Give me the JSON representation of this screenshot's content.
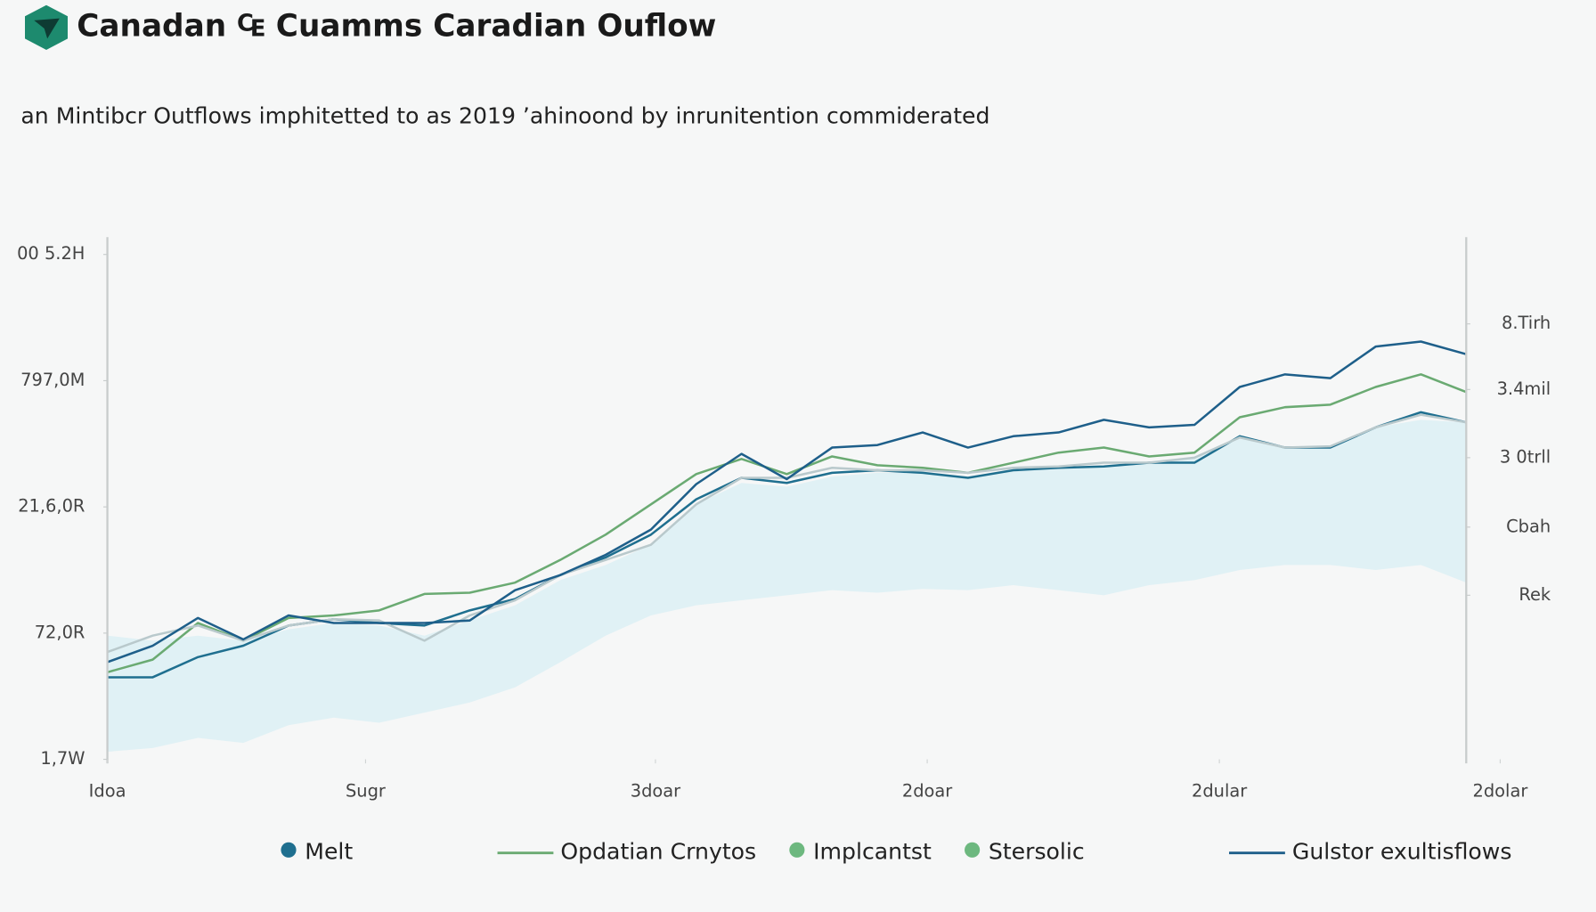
{
  "chart_data": {
    "type": "line",
    "title": "Canadan ₠ Cuamms Caradian Ouflow",
    "subtitle": "an Mintibcr Outflows imphitetted to as 2019 ’ahinoond by inrunitention commiderated",
    "x": [
      0,
      2,
      4,
      6,
      8,
      10,
      12,
      14,
      16,
      18,
      20,
      22,
      24,
      26,
      28,
      30,
      32,
      34,
      36,
      38,
      40,
      42,
      44,
      46,
      48,
      50,
      52,
      54,
      56,
      58,
      60
    ],
    "xlim": [
      0,
      60
    ],
    "xticks": [
      {
        "value": 0,
        "label": "Idoa"
      },
      {
        "value": 11.4,
        "label": "Sugr"
      },
      {
        "value": 24.2,
        "label": "3doar"
      },
      {
        "value": 36.2,
        "label": "2doar"
      },
      {
        "value": 49.1,
        "label": "2dular"
      },
      {
        "value": 61.5,
        "label": "2dolar"
      }
    ],
    "ylim": [
      0,
      4.15
    ],
    "yticks": [
      {
        "value": 0,
        "label": "1,7W"
      },
      {
        "value": 1,
        "label": "72,0R"
      },
      {
        "value": 2,
        "label": "21,6,0R"
      },
      {
        "value": 3,
        "label": "797,0M"
      },
      {
        "value": 4,
        "label": "00 5.2H"
      }
    ],
    "y2lim": [
      0,
      4.15
    ],
    "y2ticks": [
      {
        "value": 1.3,
        "label": "Rek"
      },
      {
        "value": 1.84,
        "label": "Cbah"
      },
      {
        "value": 2.39,
        "label": "3 0trll"
      },
      {
        "value": 2.93,
        "label": "3.4mil"
      },
      {
        "value": 3.45,
        "label": "8.Tirh"
      }
    ],
    "series": [
      {
        "name": "Melt",
        "type": "line",
        "color": "#1f6f8f",
        "legend_marker": "dot",
        "values": [
          0.65,
          0.65,
          0.81,
          0.9,
          1.06,
          1.11,
          1.08,
          1.06,
          1.18,
          1.27,
          1.46,
          1.6,
          1.78,
          2.06,
          2.23,
          2.19,
          2.27,
          2.29,
          2.27,
          2.23,
          2.29,
          2.31,
          2.32,
          2.35,
          2.35,
          2.56,
          2.47,
          2.47,
          2.63,
          2.75,
          2.67
        ]
      },
      {
        "name": "Opdatian Crnytos",
        "type": "line",
        "color": "#6aaa72",
        "legend_marker": "line",
        "values": [
          0.69,
          0.79,
          1.08,
          0.94,
          1.12,
          1.14,
          1.18,
          1.31,
          1.32,
          1.4,
          1.58,
          1.78,
          2.02,
          2.26,
          2.38,
          2.26,
          2.4,
          2.33,
          2.31,
          2.27,
          2.35,
          2.43,
          2.47,
          2.4,
          2.43,
          2.71,
          2.79,
          2.81,
          2.95,
          3.05,
          2.91
        ]
      },
      {
        "name": "Implcantst",
        "type": "line",
        "color": "#b9c9cc",
        "legend_color": "#6db87f",
        "legend_marker": "dot",
        "values": [
          0.85,
          0.98,
          1.06,
          0.94,
          1.06,
          1.11,
          1.1,
          0.94,
          1.14,
          1.26,
          1.46,
          1.58,
          1.7,
          2.02,
          2.23,
          2.23,
          2.31,
          2.29,
          2.29,
          2.27,
          2.31,
          2.32,
          2.35,
          2.35,
          2.39,
          2.55,
          2.47,
          2.48,
          2.63,
          2.73,
          2.67
        ]
      },
      {
        "name": "Stersolic",
        "type": "area",
        "color": "#dcf0f4",
        "legend_color": "#6db87f",
        "legend_marker": "dot",
        "values": [
          0.98,
          0.94,
          0.98,
          0.94,
          1.03,
          1.08,
          1.06,
          0.98,
          1.1,
          1.22,
          1.42,
          1.54,
          1.7,
          2.02,
          2.19,
          2.16,
          2.24,
          2.27,
          2.27,
          2.24,
          2.29,
          2.31,
          2.32,
          2.35,
          2.39,
          2.55,
          2.47,
          2.48,
          2.63,
          2.69,
          2.67
        ],
        "lower": [
          0.06,
          0.09,
          0.17,
          0.13,
          0.27,
          0.33,
          0.29,
          0.37,
          0.45,
          0.57,
          0.77,
          0.98,
          1.14,
          1.22,
          1.26,
          1.3,
          1.34,
          1.32,
          1.35,
          1.34,
          1.38,
          1.34,
          1.3,
          1.38,
          1.42,
          1.5,
          1.54,
          1.54,
          1.5,
          1.54,
          1.4
        ]
      },
      {
        "name": "Gulstor exultisflows",
        "type": "line",
        "color": "#1e5f8a",
        "legend_marker": "line",
        "values": [
          0.77,
          0.9,
          1.12,
          0.95,
          1.14,
          1.08,
          1.08,
          1.08,
          1.1,
          1.34,
          1.46,
          1.62,
          1.82,
          2.18,
          2.42,
          2.22,
          2.47,
          2.49,
          2.59,
          2.47,
          2.56,
          2.59,
          2.69,
          2.63,
          2.65,
          2.95,
          3.05,
          3.02,
          3.27,
          3.31,
          3.21
        ]
      }
    ]
  }
}
